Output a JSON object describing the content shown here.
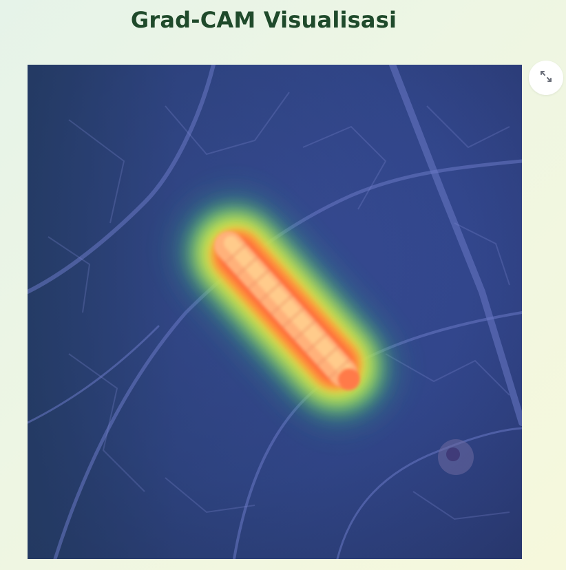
{
  "header": {
    "title": "Grad-CAM Visualisasi"
  },
  "image": {
    "subject": "gradcam-heatmap-overlay-caterpillar-on-leaf"
  },
  "toolbar": {
    "fullscreen_icon": "expand-icon"
  },
  "colors": {
    "title": "#1f4a2b",
    "heat_high": "#ff5a3c",
    "heat_mid": "#ffe23a",
    "heat_low": "#38d27a",
    "leaf_overlay": "#2f3f8a"
  }
}
